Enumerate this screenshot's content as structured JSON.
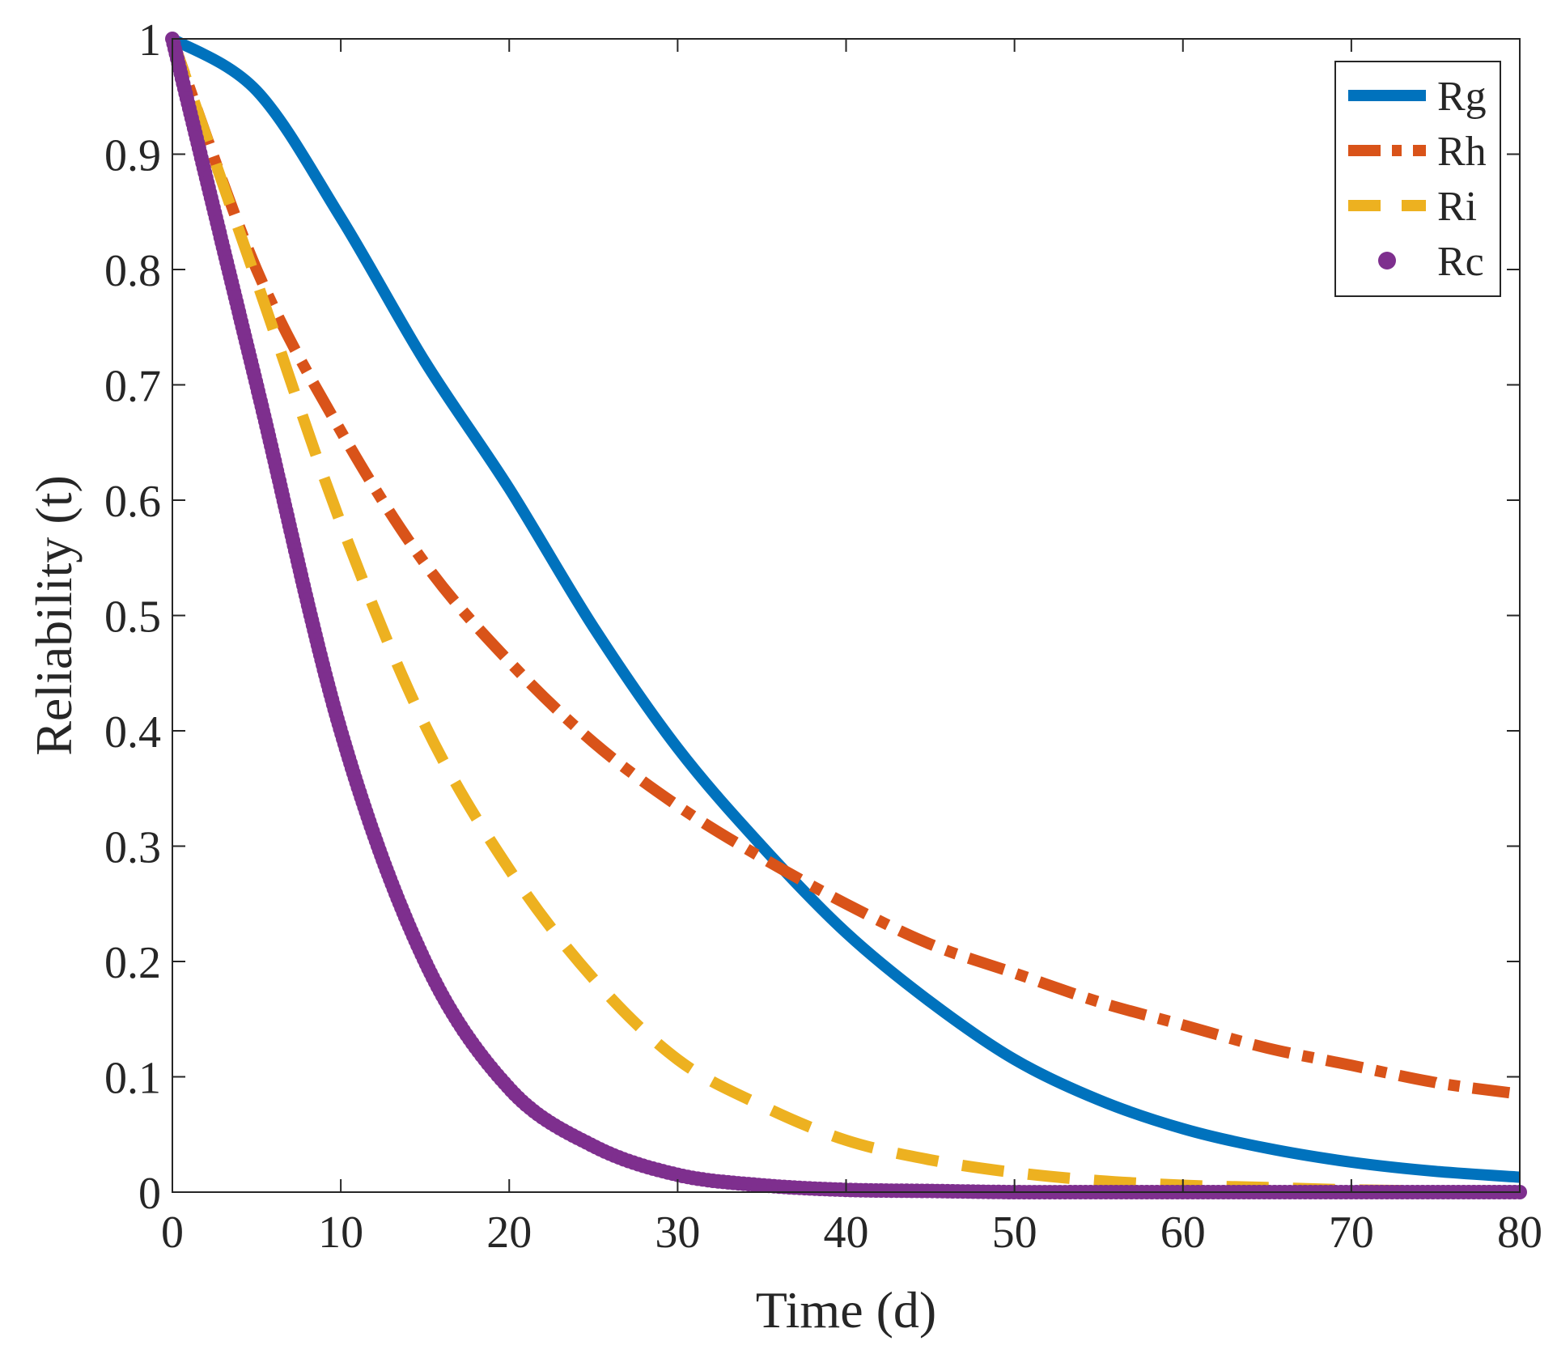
{
  "chart_data": {
    "type": "line",
    "title": "",
    "xlabel": "Time (d)",
    "ylabel": "Reliability (t)",
    "xlim": [
      0,
      80
    ],
    "ylim": [
      0,
      1
    ],
    "xticks": [
      0,
      10,
      20,
      30,
      40,
      50,
      60,
      70,
      80
    ],
    "xtick_labels": [
      "0",
      "10",
      "20",
      "30",
      "40",
      "50",
      "60",
      "70",
      "80"
    ],
    "yticks": [
      0,
      0.1,
      0.2,
      0.3,
      0.4,
      0.5,
      0.6,
      0.7,
      0.8,
      0.9,
      1
    ],
    "ytick_labels": [
      "0",
      "0.1",
      "0.2",
      "0.3",
      "0.4",
      "0.5",
      "0.6",
      "0.7",
      "0.8",
      "0.9",
      "1"
    ],
    "grid": false,
    "legend_position": "top-right",
    "x": [
      0,
      5,
      10,
      15,
      20,
      25,
      30,
      35,
      40,
      45,
      50,
      55,
      60,
      65,
      70,
      75,
      80
    ],
    "series": [
      {
        "name": "Rg",
        "style": "solid",
        "color": "#0072BD",
        "values": [
          1.0,
          0.955,
          0.845,
          0.72,
          0.61,
          0.49,
          0.385,
          0.3,
          0.225,
          0.165,
          0.115,
          0.08,
          0.055,
          0.038,
          0.026,
          0.018,
          0.013
        ]
      },
      {
        "name": "Rh",
        "style": "dashdot",
        "color": "#D95319",
        "values": [
          1.0,
          0.8,
          0.66,
          0.545,
          0.46,
          0.39,
          0.335,
          0.29,
          0.25,
          0.215,
          0.19,
          0.165,
          0.145,
          0.125,
          0.11,
          0.095,
          0.085
        ]
      },
      {
        "name": "Ri",
        "style": "dashed",
        "color": "#EDB120",
        "values": [
          1.0,
          0.79,
          0.58,
          0.405,
          0.28,
          0.185,
          0.115,
          0.075,
          0.045,
          0.028,
          0.017,
          0.01,
          0.006,
          0.004,
          0.002,
          0.001,
          0.001
        ]
      },
      {
        "name": "Rc",
        "style": "dots",
        "color": "#7E2F8E",
        "values": [
          1.0,
          0.7,
          0.4,
          0.2,
          0.09,
          0.04,
          0.015,
          0.006,
          0.002,
          0.001,
          0.0,
          0.0,
          0.0,
          0.0,
          0.0,
          0.0,
          0.0
        ]
      }
    ]
  }
}
